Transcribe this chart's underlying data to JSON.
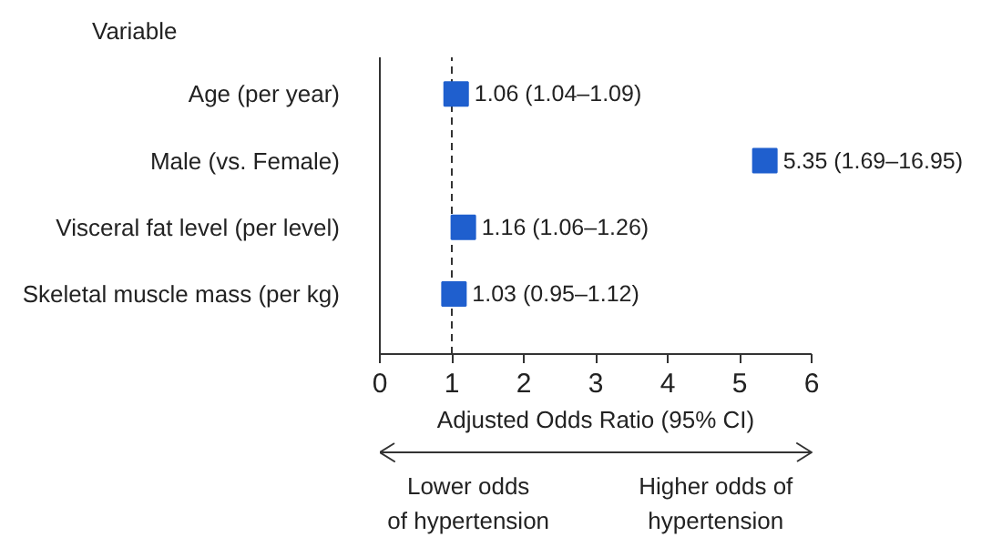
{
  "chart_data": {
    "type": "scatter",
    "orientation": "horizontal",
    "xlabel": "Adjusted Odds Ratio (95% CI)",
    "categories": [
      "Age (per year)",
      "Male (vs. Female)",
      "Visceral fat level (per level)",
      "Skeletal muscle mass (per kg)"
    ],
    "series": [
      {
        "color": "#1f5fce",
        "values": [
          1.06,
          5.35,
          1.16,
          1.03
        ],
        "value_labels": [
          "1.06 (1.04–1.09)",
          "5.35 (1.69–16.95)",
          "1.16 (1.06–1.26)",
          "1.03 (0.95–1.12)"
        ]
      }
    ],
    "xlim": [
      0,
      6
    ],
    "xticks": [
      0,
      1,
      2,
      3,
      4,
      5,
      6
    ],
    "marker": "square",
    "grid": false,
    "ref_lines": [
      {
        "axis": "x",
        "value": 1,
        "line_style": "dashed",
        "color": "#333333"
      }
    ],
    "annotations": [
      "Variable",
      "Lower odds\nof hypertension",
      "Higher odds of\nhypertension"
    ]
  }
}
